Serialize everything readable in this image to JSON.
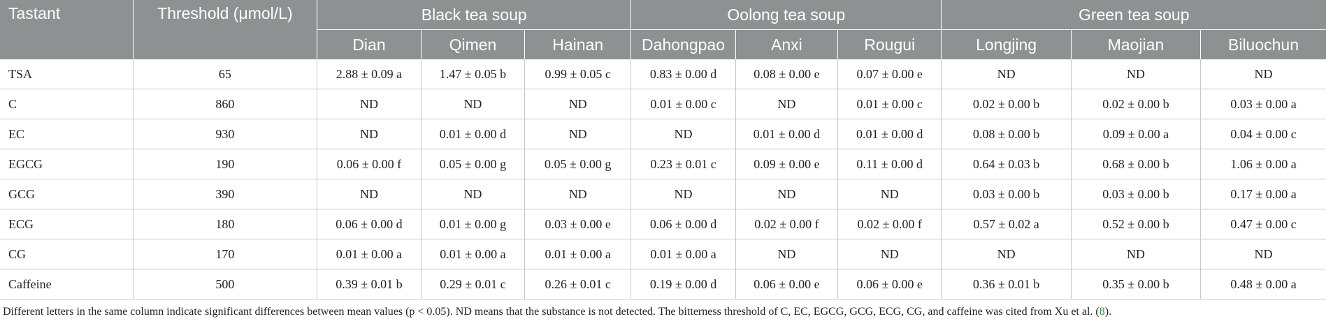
{
  "header": {
    "col_tastant": "Tastant",
    "col_threshold": "Threshold (μmol/L)",
    "groups": [
      "Black tea soup",
      "Oolong tea soup",
      "Green tea soup"
    ],
    "subcols": [
      "Dian",
      "Qimen",
      "Hainan",
      "Dahongpao",
      "Anxi",
      "Rougui",
      "Longjing",
      "Maojian",
      "Biluochun"
    ]
  },
  "rows": [
    {
      "name": "TSA",
      "threshold": "65",
      "values": [
        "2.88 ± 0.09 a",
        "1.47 ± 0.05 b",
        "0.99 ± 0.05 c",
        "0.83 ± 0.00 d",
        "0.08 ± 0.00 e",
        "0.07 ± 0.00 e",
        "ND",
        "ND",
        "ND"
      ]
    },
    {
      "name": "C",
      "threshold": "860",
      "values": [
        "ND",
        "ND",
        "ND",
        "0.01 ± 0.00 c",
        "ND",
        "0.01 ± 0.00 c",
        "0.02 ± 0.00 b",
        "0.02 ± 0.00 b",
        "0.03 ± 0.00 a"
      ]
    },
    {
      "name": "EC",
      "threshold": "930",
      "values": [
        "ND",
        "0.01 ± 0.00 d",
        "ND",
        "ND",
        "0.01 ± 0.00 d",
        "0.01 ± 0.00 d",
        "0.08 ± 0.00 b",
        "0.09 ± 0.00 a",
        "0.04 ± 0.00 c"
      ]
    },
    {
      "name": "EGCG",
      "threshold": "190",
      "values": [
        "0.06 ± 0.00 f",
        "0.05 ± 0.00 g",
        "0.05 ± 0.00 g",
        "0.23 ± 0.01 c",
        "0.09 ± 0.00 e",
        "0.11 ± 0.00 d",
        "0.64 ± 0.03 b",
        "0.68 ± 0.00 b",
        "1.06 ± 0.00 a"
      ]
    },
    {
      "name": "GCG",
      "threshold": "390",
      "values": [
        "ND",
        "ND",
        "ND",
        "ND",
        "ND",
        "ND",
        "0.03 ± 0.00 b",
        "0.03 ± 0.00 b",
        "0.17 ± 0.00 a"
      ]
    },
    {
      "name": "ECG",
      "threshold": "180",
      "values": [
        "0.06 ± 0.00 d",
        "0.01 ± 0.00 g",
        "0.03 ± 0.00 e",
        "0.06 ± 0.00 d",
        "0.02 ± 0.00 f",
        "0.02 ± 0.00 f",
        "0.57 ± 0.02 a",
        "0.52 ± 0.00 b",
        "0.47 ± 0.00 c"
      ]
    },
    {
      "name": "CG",
      "threshold": "170",
      "values": [
        "0.01 ± 0.00 a",
        "0.01 ± 0.00 a",
        "0.01 ± 0.00 a",
        "0.01 ± 0.00 a",
        "ND",
        "ND",
        "ND",
        "ND",
        "ND"
      ]
    },
    {
      "name": "Caffeine",
      "threshold": "500",
      "values": [
        "0.39 ± 0.01 b",
        "0.29 ± 0.01 c",
        "0.26 ± 0.01 c",
        "0.19 ± 0.00 d",
        "0.06 ± 0.00 e",
        "0.06 ± 0.00 e",
        "0.36 ± 0.01 b",
        "0.35 ± 0.00 b",
        "0.48 ± 0.00 a"
      ]
    }
  ],
  "footnote": {
    "text": "Different letters in the same column indicate significant differences between mean values (p < 0.05). ND means that the substance is not detected. The bitterness threshold of C, EC, EGCG, GCG, ECG, CG, and caffeine was cited from Xu et al. (",
    "ref": "8",
    "tail": ")."
  }
}
